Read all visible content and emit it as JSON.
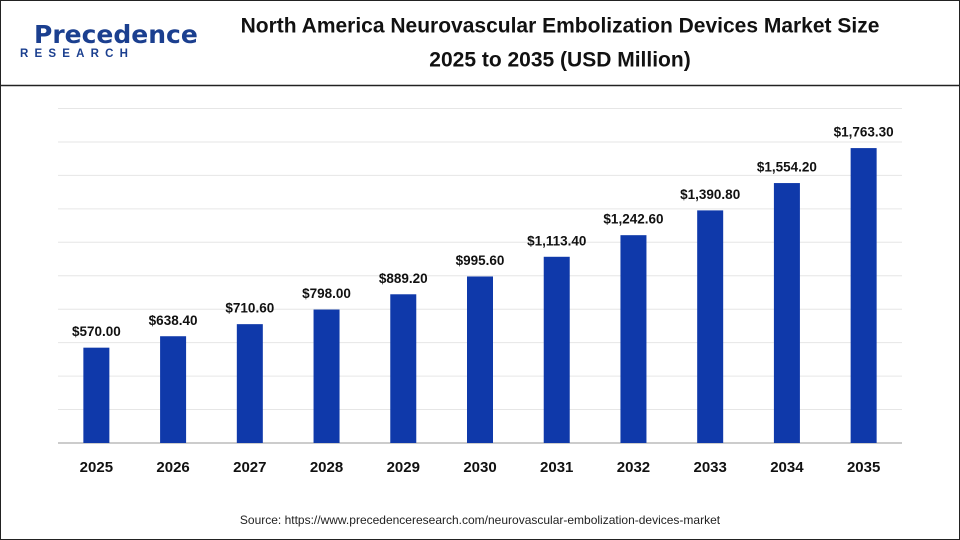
{
  "logo": {
    "name": "Precedence",
    "tagline": "RESEARCH"
  },
  "chart_data": {
    "type": "bar",
    "title": [
      "North America Neurovascular Embolization Devices Market Size",
      "2025 to 2035 (USD Million)"
    ],
    "categories": [
      "2025",
      "2026",
      "2027",
      "2028",
      "2029",
      "2030",
      "2031",
      "2032",
      "2033",
      "2034",
      "2035"
    ],
    "values": [
      570.0,
      638.4,
      710.6,
      798.0,
      889.2,
      995.6,
      1113.4,
      1242.6,
      1390.8,
      1554.2,
      1763.3
    ],
    "value_labels": [
      "$570.00",
      "$638.40",
      "$710.60",
      "$798.00",
      "$889.20",
      "$995.60",
      "$1,113.40",
      "$1,242.60",
      "$1,390.80",
      "$1,554.20",
      "$1,763.30"
    ],
    "color": "#0f39aa",
    "ylim": [
      0,
      2000
    ],
    "yticks": [
      0,
      200,
      400,
      600,
      800,
      1000,
      1200,
      1400,
      1600,
      1800,
      2000
    ],
    "grid": true,
    "source": "Source: https://www.precedenceresearch.com/neurovascular-embolization-devices-market"
  }
}
